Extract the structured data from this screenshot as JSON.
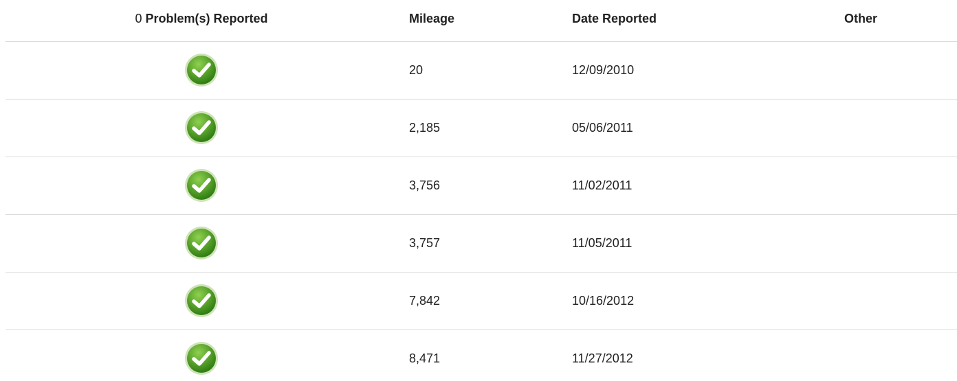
{
  "header": {
    "problem_count": "0",
    "problem_label": "Problem(s) Reported",
    "mileage": "Mileage",
    "date": "Date Reported",
    "other": "Other"
  },
  "table": {
    "rows": [
      {
        "mileage": "20",
        "date": "12/09/2010"
      },
      {
        "mileage": "2,185",
        "date": "05/06/2011"
      },
      {
        "mileage": "3,756",
        "date": "11/02/2011"
      },
      {
        "mileage": "3,757",
        "date": "11/05/2011"
      },
      {
        "mileage": "7,842",
        "date": "10/16/2012"
      },
      {
        "mileage": "8,471",
        "date": "11/27/2012"
      }
    ]
  }
}
